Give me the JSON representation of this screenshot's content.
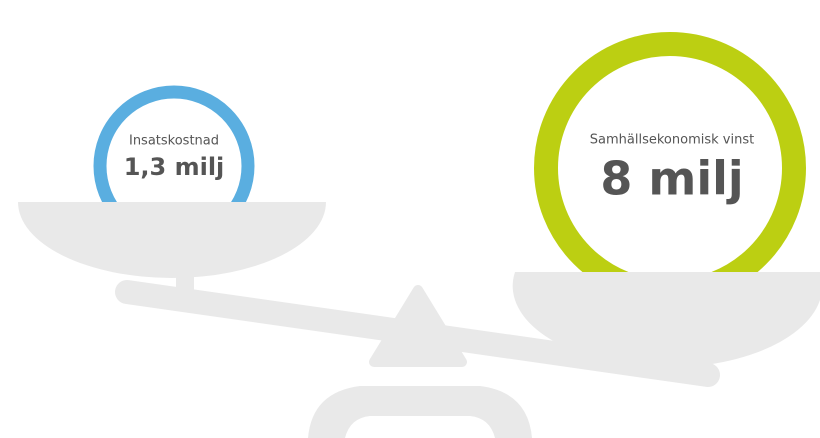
{
  "left": {
    "label": "Insatskostnad",
    "value": "1,3 milj"
  },
  "right": {
    "label": "Samhällsekonomisk vinst",
    "value": "8 milj"
  }
}
